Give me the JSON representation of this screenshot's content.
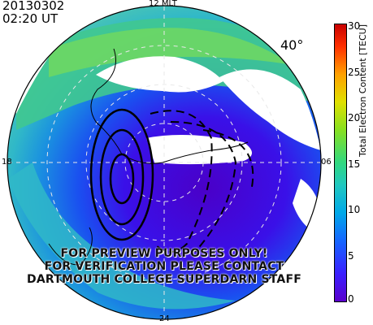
{
  "header": {
    "date": "20130302",
    "time": "02:20 UT"
  },
  "map": {
    "mlt_labels": {
      "top": "12 MLT",
      "left": "18",
      "right": "06",
      "bottom": "24"
    },
    "latitude_label": "40°",
    "warning_lines": [
      "FOR PREVIEW PURPOSES ONLY!",
      "FOR VERIFICATION PLEASE CONTACT",
      "DARTMOUTH COLLEGE SUPERDARN STAFF"
    ]
  },
  "colorbar": {
    "title": "Total Electron Content [TECU]",
    "ticks": [
      "30",
      "25",
      "20",
      "15",
      "10",
      "5",
      "0"
    ],
    "min": 0,
    "max": 30,
    "colors": [
      "#5a00cc",
      "#3a1fff",
      "#1466ff",
      "#00a8e8",
      "#20c8c0",
      "#30d880",
      "#88e020",
      "#e0e000",
      "#ffa000",
      "#ff3000",
      "#c80000"
    ]
  }
}
